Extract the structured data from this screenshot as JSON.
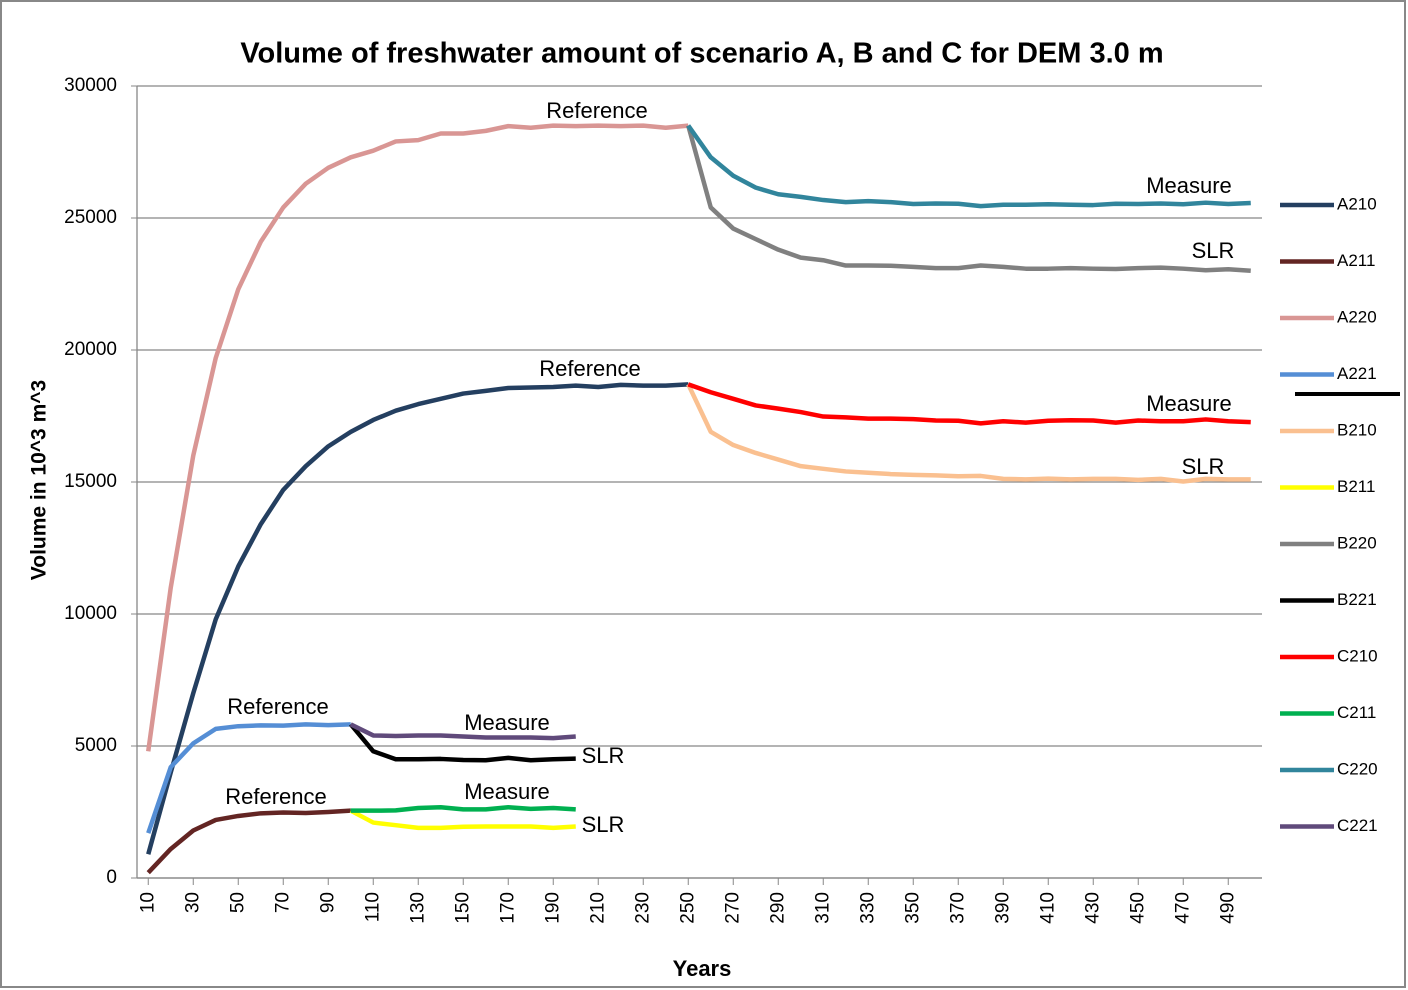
{
  "chart_data": {
    "type": "line",
    "title": "Volume of freshwater amount of scenario A, B and C for DEM 3.0 m",
    "x_label": "Years",
    "y_label": "Volume in 10^3 m^3",
    "xlim": [
      5,
      505
    ],
    "xticks": [
      10,
      30,
      50,
      70,
      90,
      110,
      130,
      150,
      170,
      190,
      210,
      230,
      250,
      270,
      290,
      310,
      330,
      350,
      370,
      390,
      410,
      430,
      450,
      470,
      490
    ],
    "ylim": [
      0,
      30000
    ],
    "yticks": [
      0,
      5000,
      10000,
      15000,
      20000,
      25000,
      30000
    ],
    "grid": true,
    "legend": "right",
    "annotations": [
      "Reference",
      "Reference",
      "Reference",
      "Reference",
      "Measure",
      "SLR",
      "Measure",
      "SLR",
      "Measure",
      "SLR",
      "Measure",
      "SLR"
    ],
    "series": [
      {
        "name": "A210",
        "color": "#243f60",
        "x": [
          10,
          20,
          30,
          40,
          50,
          60,
          70,
          80,
          90,
          100,
          110,
          120,
          130,
          140,
          150,
          160,
          170,
          180,
          190,
          200,
          210,
          220,
          230,
          240,
          250
        ],
        "values": [
          900,
          4000,
          7000,
          9800,
          11800,
          13400,
          14700,
          15600,
          16350,
          16900,
          17350,
          17700,
          17950,
          18150,
          18350,
          18450,
          18560,
          18580,
          18600,
          18650,
          18600,
          18680,
          18650,
          18650,
          18700
        ]
      },
      {
        "name": "A211",
        "color": "#632523",
        "x": [
          10,
          20,
          30,
          40,
          50,
          60,
          70,
          80,
          90,
          100
        ],
        "values": [
          200,
          1100,
          1800,
          2200,
          2350,
          2450,
          2480,
          2460,
          2500,
          2550
        ]
      },
      {
        "name": "A220",
        "color": "#d99694",
        "x": [
          10,
          20,
          30,
          40,
          50,
          60,
          70,
          80,
          90,
          100,
          110,
          120,
          130,
          140,
          150,
          160,
          170,
          180,
          190,
          200,
          210,
          220,
          230,
          240,
          250
        ],
        "values": [
          4800,
          11000,
          16000,
          19700,
          22300,
          24100,
          25400,
          26300,
          26900,
          27300,
          27550,
          27900,
          27950,
          28200,
          28200,
          28300,
          28480,
          28420,
          28500,
          28480,
          28500,
          28480,
          28500,
          28420,
          28500
        ]
      },
      {
        "name": "A221",
        "color": "#558ed5",
        "x": [
          10,
          20,
          30,
          40,
          50,
          60,
          70,
          80,
          90,
          100
        ],
        "values": [
          1700,
          4200,
          5100,
          5650,
          5750,
          5780,
          5770,
          5820,
          5790,
          5820
        ]
      },
      {
        "name": "B210",
        "color": "#fac090",
        "x": [
          250,
          260,
          270,
          280,
          290,
          300,
          310,
          320,
          330,
          340,
          350,
          360,
          370,
          380,
          390,
          400,
          410,
          420,
          430,
          440,
          450,
          460,
          470,
          480,
          490,
          500
        ],
        "values": [
          18700,
          16900,
          16400,
          16100,
          15850,
          15600,
          15500,
          15400,
          15350,
          15300,
          15270,
          15250,
          15220,
          15230,
          15120,
          15100,
          15130,
          15100,
          15120,
          15120,
          15080,
          15120,
          15020,
          15120,
          15100,
          15100
        ]
      },
      {
        "name": "B211",
        "color": "#ffff00",
        "x": [
          100,
          110,
          120,
          130,
          140,
          150,
          160,
          170,
          180,
          190,
          200
        ],
        "values": [
          2550,
          2100,
          2000,
          1900,
          1900,
          1940,
          1950,
          1950,
          1950,
          1900,
          1950
        ]
      },
      {
        "name": "B220",
        "color": "#808080",
        "x": [
          250,
          260,
          270,
          280,
          290,
          300,
          310,
          320,
          330,
          340,
          350,
          360,
          370,
          380,
          390,
          400,
          410,
          420,
          430,
          440,
          450,
          460,
          470,
          480,
          490,
          500
        ],
        "values": [
          28500,
          25400,
          24600,
          24200,
          23800,
          23500,
          23400,
          23200,
          23200,
          23190,
          23150,
          23100,
          23100,
          23200,
          23150,
          23080,
          23080,
          23100,
          23080,
          23070,
          23100,
          23120,
          23080,
          23020,
          23060,
          23000
        ]
      },
      {
        "name": "B221",
        "color": "#000000",
        "x": [
          100,
          110,
          120,
          130,
          140,
          150,
          160,
          170,
          180,
          190,
          200
        ],
        "values": [
          5820,
          4800,
          4500,
          4500,
          4510,
          4470,
          4460,
          4550,
          4460,
          4500,
          4520
        ]
      },
      {
        "name": "C210",
        "color": "#ff0000",
        "x": [
          250,
          260,
          270,
          280,
          290,
          300,
          310,
          320,
          330,
          340,
          350,
          360,
          370,
          380,
          390,
          400,
          410,
          420,
          430,
          440,
          450,
          460,
          470,
          480,
          490,
          500
        ],
        "values": [
          18700,
          18400,
          18150,
          17900,
          17780,
          17650,
          17480,
          17450,
          17400,
          17400,
          17380,
          17330,
          17320,
          17220,
          17300,
          17250,
          17320,
          17340,
          17330,
          17250,
          17330,
          17300,
          17300,
          17370,
          17300,
          17270
        ]
      },
      {
        "name": "C211",
        "color": "#00b050",
        "x": [
          100,
          110,
          120,
          130,
          140,
          150,
          160,
          170,
          180,
          190,
          200
        ],
        "values": [
          2550,
          2550,
          2560,
          2650,
          2680,
          2600,
          2600,
          2680,
          2620,
          2650,
          2600
        ]
      },
      {
        "name": "C220",
        "color": "#31859c",
        "x": [
          250,
          260,
          270,
          280,
          290,
          300,
          310,
          320,
          330,
          340,
          350,
          360,
          370,
          380,
          390,
          400,
          410,
          420,
          430,
          440,
          450,
          460,
          470,
          480,
          490,
          500
        ],
        "values": [
          28500,
          27300,
          26600,
          26150,
          25900,
          25800,
          25680,
          25600,
          25640,
          25600,
          25530,
          25550,
          25540,
          25450,
          25500,
          25500,
          25520,
          25500,
          25490,
          25540,
          25530,
          25550,
          25520,
          25580,
          25530,
          25570
        ]
      },
      {
        "name": "C221",
        "color": "#604a7b",
        "x": [
          100,
          110,
          120,
          130,
          140,
          150,
          160,
          170,
          180,
          190,
          200
        ],
        "values": [
          5820,
          5400,
          5380,
          5400,
          5400,
          5360,
          5320,
          5320,
          5320,
          5300,
          5360
        ]
      }
    ]
  }
}
